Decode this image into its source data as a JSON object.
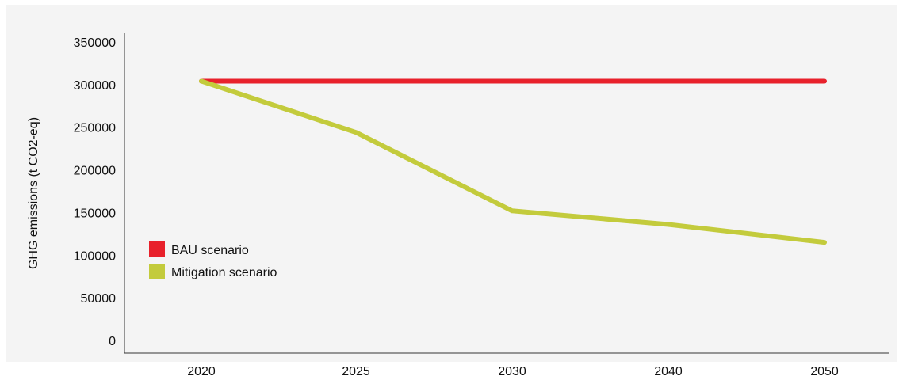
{
  "chart_data": {
    "type": "line",
    "title": "",
    "xlabel": "",
    "ylabel": "GHG emissions (t CO2-eq)",
    "categories": [
      "2020",
      "2025",
      "2030",
      "2040",
      "2050"
    ],
    "ylim": [
      0,
      350000
    ],
    "yticks": [
      "0",
      "50000",
      "100000",
      "150000",
      "200000",
      "250000",
      "300000",
      "350000"
    ],
    "grid": false,
    "legend_position": "left",
    "series": [
      {
        "name": "BAU scenario",
        "color": "#e8212b",
        "values": [
          304000,
          304000,
          304000,
          304000,
          304000
        ]
      },
      {
        "name": "Mitigation scenario",
        "color": "#c3cb3c",
        "values": [
          304000,
          244000,
          152000,
          136000,
          115000
        ]
      }
    ]
  }
}
